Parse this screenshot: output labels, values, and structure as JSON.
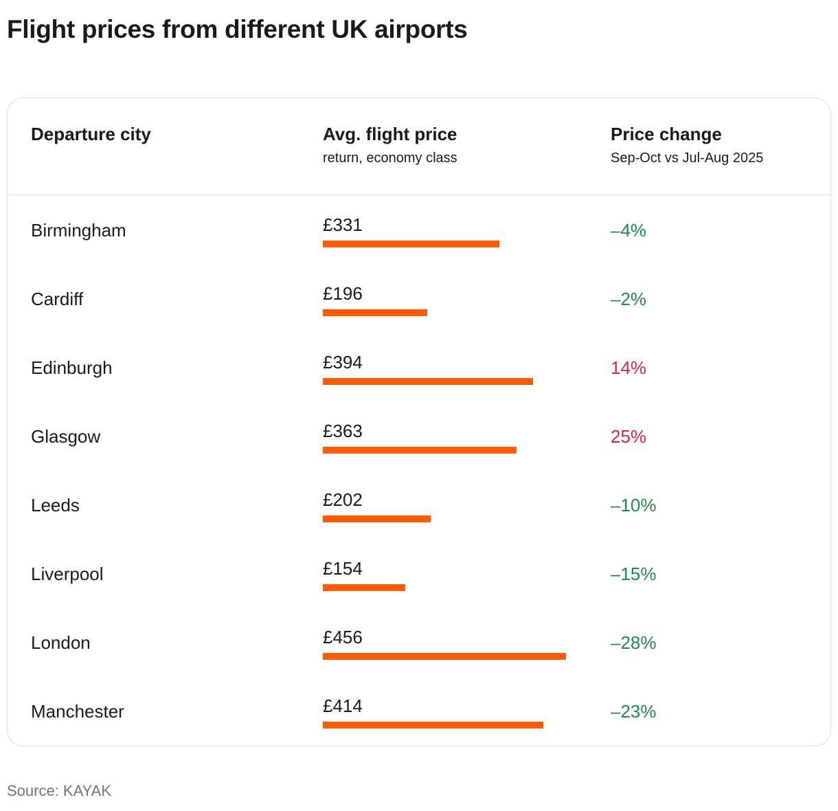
{
  "title": "Flight prices from different UK airports",
  "source": "Source: KAYAK",
  "colors": {
    "bar": "#ff5a00",
    "decrease": "#1f8a4c",
    "increase": "#d62839"
  },
  "headers": {
    "city": "Departure city",
    "price": "Avg. flight price",
    "price_sub": "return, economy class",
    "change": "Price change",
    "change_sub": "Sep-Oct vs Jul-Aug 2025"
  },
  "chart_data": {
    "type": "bar",
    "title": "Flight prices from different UK airports",
    "categories": [
      "Birmingham",
      "Cardiff",
      "Edinburgh",
      "Glasgow",
      "Leeds",
      "Liverpool",
      "London",
      "Manchester"
    ],
    "values": [
      331,
      196,
      394,
      363,
      202,
      154,
      456,
      414
    ],
    "value_labels": [
      "£331",
      "£196",
      "£394",
      "£363",
      "£202",
      "£154",
      "£456",
      "£414"
    ],
    "changes": [
      "–4%",
      "–2%",
      "14%",
      "25%",
      "–10%",
      "–15%",
      "–28%",
      "–23%"
    ],
    "change_values": [
      -4,
      -2,
      14,
      25,
      -10,
      -15,
      -28,
      -23
    ],
    "xlim": [
      0,
      456
    ],
    "xlabel": "Avg. flight price",
    "ylabel": "Departure city"
  }
}
